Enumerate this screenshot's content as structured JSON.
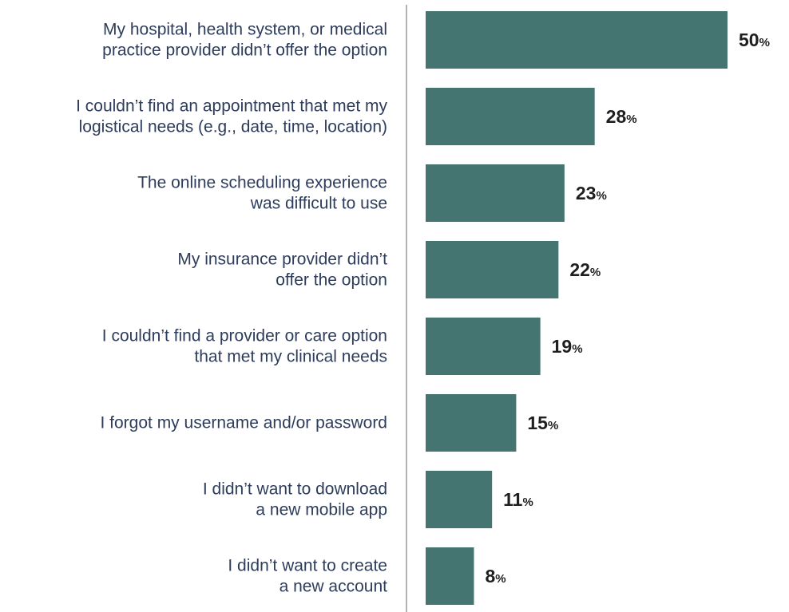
{
  "chart_data": {
    "type": "bar",
    "orientation": "horizontal",
    "categories": [
      [
        "My hospital, health system, or medical",
        "practice provider didn’t offer the option"
      ],
      [
        "I couldn’t find an appointment that met my",
        "logistical needs (e.g., date, time, location)"
      ],
      [
        "The online scheduling experience",
        "was difficult to use"
      ],
      [
        "My insurance provider didn’t",
        "offer the option"
      ],
      [
        "I couldn’t find a provider or care option",
        "that met my clinical needs"
      ],
      [
        "I forgot my username and/or password"
      ],
      [
        "I didn’t want to download",
        "a new mobile app"
      ],
      [
        "I didn’t want to create",
        "a new account"
      ]
    ],
    "values": [
      50,
      28,
      23,
      22,
      19,
      15,
      11,
      8
    ],
    "value_suffix": "%",
    "xlim": [
      0,
      50
    ],
    "grid": false,
    "bar_color": "#457570",
    "axis_line_color": "#9a9a9a",
    "label_color": "#2e3d5c",
    "value_color": "#1f1f1f"
  }
}
